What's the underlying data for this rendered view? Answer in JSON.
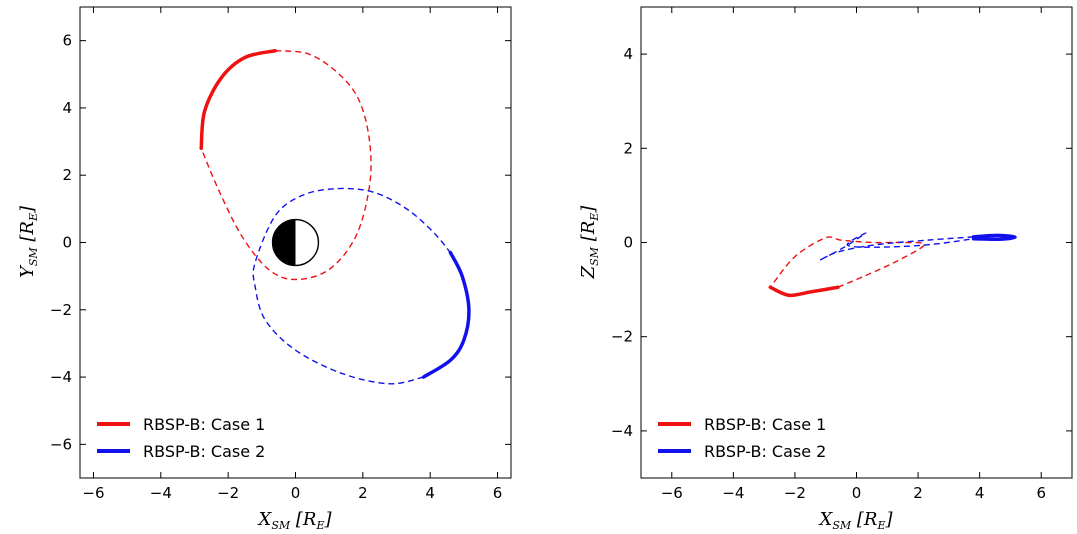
{
  "chart_data": [
    {
      "type": "line",
      "panel": "left",
      "xlabel": {
        "main": "X",
        "sub": "SM",
        "unit_open": " [",
        "unit_main": "R",
        "unit_sub": "E",
        "unit_close": "]"
      },
      "ylabel": {
        "main": "Y",
        "sub": "SM",
        "unit_open": " [",
        "unit_main": "R",
        "unit_sub": "E",
        "unit_close": "]"
      },
      "xlim": [
        -6.4,
        6.4
      ],
      "ylim": [
        -7.0,
        7.0
      ],
      "xticks": [
        -6,
        -4,
        -2,
        0,
        2,
        4,
        6
      ],
      "yticks": [
        -6,
        -4,
        -2,
        0,
        2,
        4,
        6
      ],
      "xtick_labels": [
        "−6",
        "−4",
        "−2",
        "0",
        "2",
        "4",
        "6"
      ],
      "ytick_labels": [
        "−6",
        "−4",
        "−2",
        "0",
        "2",
        "4",
        "6"
      ],
      "earth": {
        "x": 0,
        "y": 0,
        "radius": 0.65,
        "dark_side": "left"
      },
      "legend": {
        "placement": "lower-left",
        "entries": [
          "RBSP-B: Case 1",
          "RBSP-B: Case 2"
        ]
      },
      "series": [
        {
          "name": "RBSP-B: Case 1",
          "color": "#ee1111",
          "orbit": [
            [
              -0.6,
              5.7
            ],
            [
              0.4,
              5.6
            ],
            [
              1.3,
              5.0
            ],
            [
              1.9,
              4.2
            ],
            [
              2.2,
              3.0
            ],
            [
              2.2,
              1.7
            ],
            [
              1.8,
              0.2
            ],
            [
              1.0,
              -0.8
            ],
            [
              0.0,
              -1.1
            ],
            [
              -0.8,
              -0.8
            ],
            [
              -1.6,
              0.2
            ],
            [
              -2.3,
              1.6
            ],
            [
              -2.8,
              2.8
            ]
          ],
          "solid": [
            [
              -2.8,
              2.8
            ],
            [
              -2.7,
              3.9
            ],
            [
              -2.2,
              4.9
            ],
            [
              -1.5,
              5.5
            ],
            [
              -0.6,
              5.7
            ]
          ]
        },
        {
          "name": "RBSP-B: Case 2",
          "color": "#1111ee",
          "orbit": [
            [
              3.8,
              -4.0
            ],
            [
              2.8,
              -4.2
            ],
            [
              1.4,
              -3.9
            ],
            [
              0.0,
              -3.2
            ],
            [
              -0.9,
              -2.3
            ],
            [
              -1.2,
              -1.3
            ],
            [
              -1.2,
              -0.6
            ],
            [
              -0.6,
              0.8
            ],
            [
              0.2,
              1.4
            ],
            [
              1.2,
              1.6
            ],
            [
              2.3,
              1.5
            ],
            [
              3.3,
              1.0
            ],
            [
              4.1,
              0.3
            ],
            [
              4.6,
              -0.3
            ]
          ],
          "solid": [
            [
              4.6,
              -0.3
            ],
            [
              4.95,
              -1.0
            ],
            [
              5.15,
              -2.0
            ],
            [
              5.0,
              -2.9
            ],
            [
              4.6,
              -3.5
            ],
            [
              3.8,
              -4.0
            ]
          ]
        }
      ]
    },
    {
      "type": "line",
      "panel": "right",
      "xlabel": {
        "main": "X",
        "sub": "SM",
        "unit_open": " [",
        "unit_main": "R",
        "unit_sub": "E",
        "unit_close": "]"
      },
      "ylabel": {
        "main": "Z",
        "sub": "SM",
        "unit_open": " [",
        "unit_main": "R",
        "unit_sub": "E",
        "unit_close": "]"
      },
      "xlim": [
        -7.0,
        7.0
      ],
      "ylim": [
        -5.0,
        5.0
      ],
      "xticks": [
        -6,
        -4,
        -2,
        0,
        2,
        4,
        6
      ],
      "yticks": [
        -4,
        -2,
        0,
        2,
        4
      ],
      "xtick_labels": [
        "−6",
        "−4",
        "−2",
        "0",
        "2",
        "4",
        "6"
      ],
      "ytick_labels": [
        "−4",
        "−2",
        "0",
        "2",
        "4"
      ],
      "legend": {
        "placement": "lower-left",
        "entries": [
          "RBSP-B: Case 1",
          "RBSP-B: Case 2"
        ]
      },
      "series": [
        {
          "name": "RBSP-B: Case 1",
          "color": "#ee1111",
          "orbit": [
            [
              -0.6,
              -0.95
            ],
            [
              0.3,
              -0.7
            ],
            [
              1.3,
              -0.4
            ],
            [
              2.2,
              -0.05
            ],
            [
              1.5,
              0.0
            ],
            [
              0.5,
              0.0
            ],
            [
              -0.5,
              0.05
            ],
            [
              -1.0,
              0.1
            ],
            [
              -2.0,
              -0.3
            ],
            [
              -2.8,
              -0.95
            ]
          ],
          "solid": [
            [
              -2.8,
              -0.95
            ],
            [
              -2.2,
              -1.12
            ],
            [
              -1.5,
              -1.05
            ],
            [
              -0.6,
              -0.95
            ]
          ]
        },
        {
          "name": "RBSP-B: Case 2",
          "color": "#1111ee",
          "orbit": [
            [
              3.8,
              0.12
            ],
            [
              2.3,
              0.05
            ],
            [
              0.6,
              -0.05
            ],
            [
              -0.6,
              -0.2
            ],
            [
              -1.2,
              -0.38
            ],
            [
              -0.4,
              -0.1
            ],
            [
              0.3,
              0.2
            ],
            [
              -0.3,
              -0.05
            ],
            [
              0.6,
              -0.1
            ],
            [
              2.3,
              -0.05
            ],
            [
              3.8,
              0.08
            ]
          ],
          "solid": [
            [
              3.8,
              0.08
            ],
            [
              4.6,
              0.07
            ],
            [
              5.15,
              0.11
            ],
            [
              4.6,
              0.15
            ],
            [
              3.8,
              0.12
            ]
          ]
        }
      ]
    }
  ]
}
